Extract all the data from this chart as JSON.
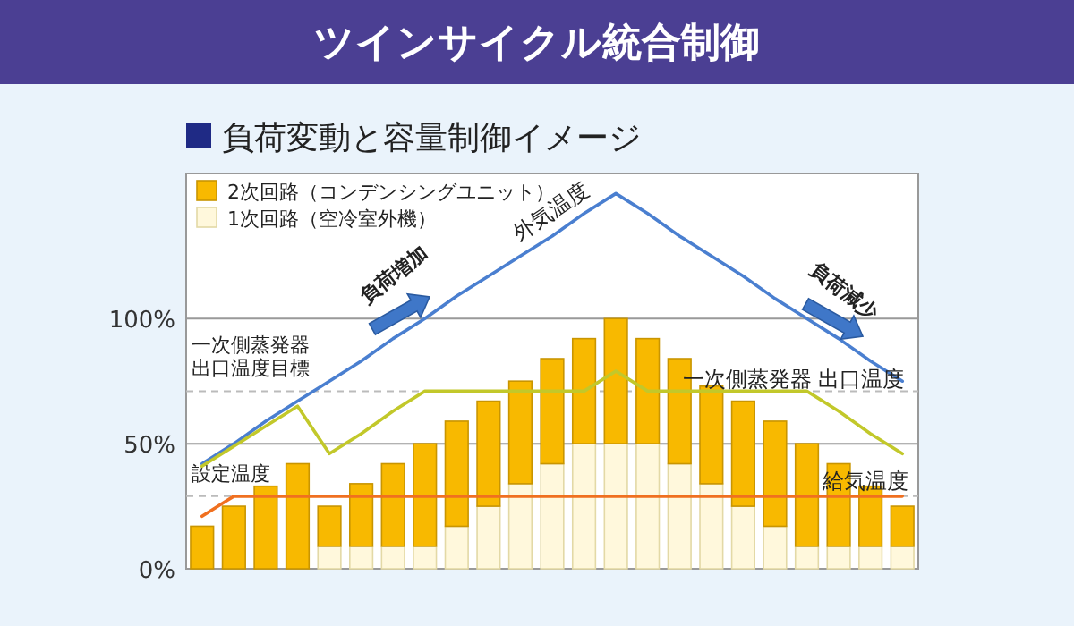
{
  "chart_data": {
    "type": "bar",
    "title": "ツインサイクル統合制御",
    "subtitle": "負荷変動と容量制御イメージ",
    "categories": [
      null,
      null,
      null,
      null,
      null,
      null,
      null,
      null,
      null,
      null,
      null,
      null,
      null,
      null,
      null,
      null,
      null,
      null,
      null,
      null,
      null,
      null,
      null
    ],
    "ylim": [
      0,
      158
    ],
    "yticks": [
      {
        "value": 0,
        "label": "0%"
      },
      {
        "value": 50,
        "label": "50%"
      },
      {
        "value": 100,
        "label": "100%"
      }
    ],
    "grid": "y",
    "stacked": true,
    "legend": "top left",
    "series": [
      {
        "name": "1次回路（空冷室外機）",
        "color": "#fff8dc",
        "values": [
          0,
          0,
          0,
          0,
          9,
          9,
          9,
          9,
          17,
          25,
          34,
          42,
          50,
          50,
          50,
          42,
          34,
          25,
          17,
          9,
          9,
          9,
          9
        ]
      },
      {
        "name": "2次回路（コンデンシングユニット）",
        "color": "#f8b900",
        "values": [
          17,
          25,
          33,
          42,
          16,
          25,
          33,
          41,
          42,
          42,
          41,
          42,
          42,
          50,
          42,
          42,
          39,
          42,
          42,
          41,
          33,
          24,
          16
        ]
      },
      {
        "type": "line",
        "name": "外気温度",
        "color": "#4a7fd0",
        "values": [
          42,
          50,
          59,
          67,
          75,
          83,
          92,
          100,
          109,
          117,
          125,
          133,
          142,
          150,
          142,
          133,
          125,
          117,
          108,
          100,
          92,
          83,
          75
        ]
      },
      {
        "type": "line",
        "name": "一次側蒸発器 出口温度",
        "color": "#c2c82a",
        "values": [
          41,
          49,
          57,
          65,
          46,
          54,
          63,
          71,
          71,
          71,
          71,
          71,
          71,
          79,
          71,
          71,
          71,
          71,
          71,
          71,
          63,
          54,
          46
        ]
      },
      {
        "type": "line",
        "name": "給気温度",
        "color": "#f07020",
        "values": [
          21,
          29,
          29,
          29,
          29,
          29,
          29,
          29,
          29,
          29,
          29,
          29,
          29,
          29,
          29,
          29,
          29,
          29,
          29,
          29,
          29,
          29,
          29
        ]
      }
    ],
    "ref_lines": [
      {
        "axis": "y",
        "value": 71,
        "label": "一次側蒸発器出口温度目標",
        "color": "#bbbbbb",
        "line_style": "dashed"
      },
      {
        "axis": "y",
        "value": 29,
        "label": "設定温度",
        "color": "#bbbbbb",
        "line_style": "dashed"
      }
    ],
    "annotations": [
      "負荷増加",
      "負荷減少"
    ]
  }
}
